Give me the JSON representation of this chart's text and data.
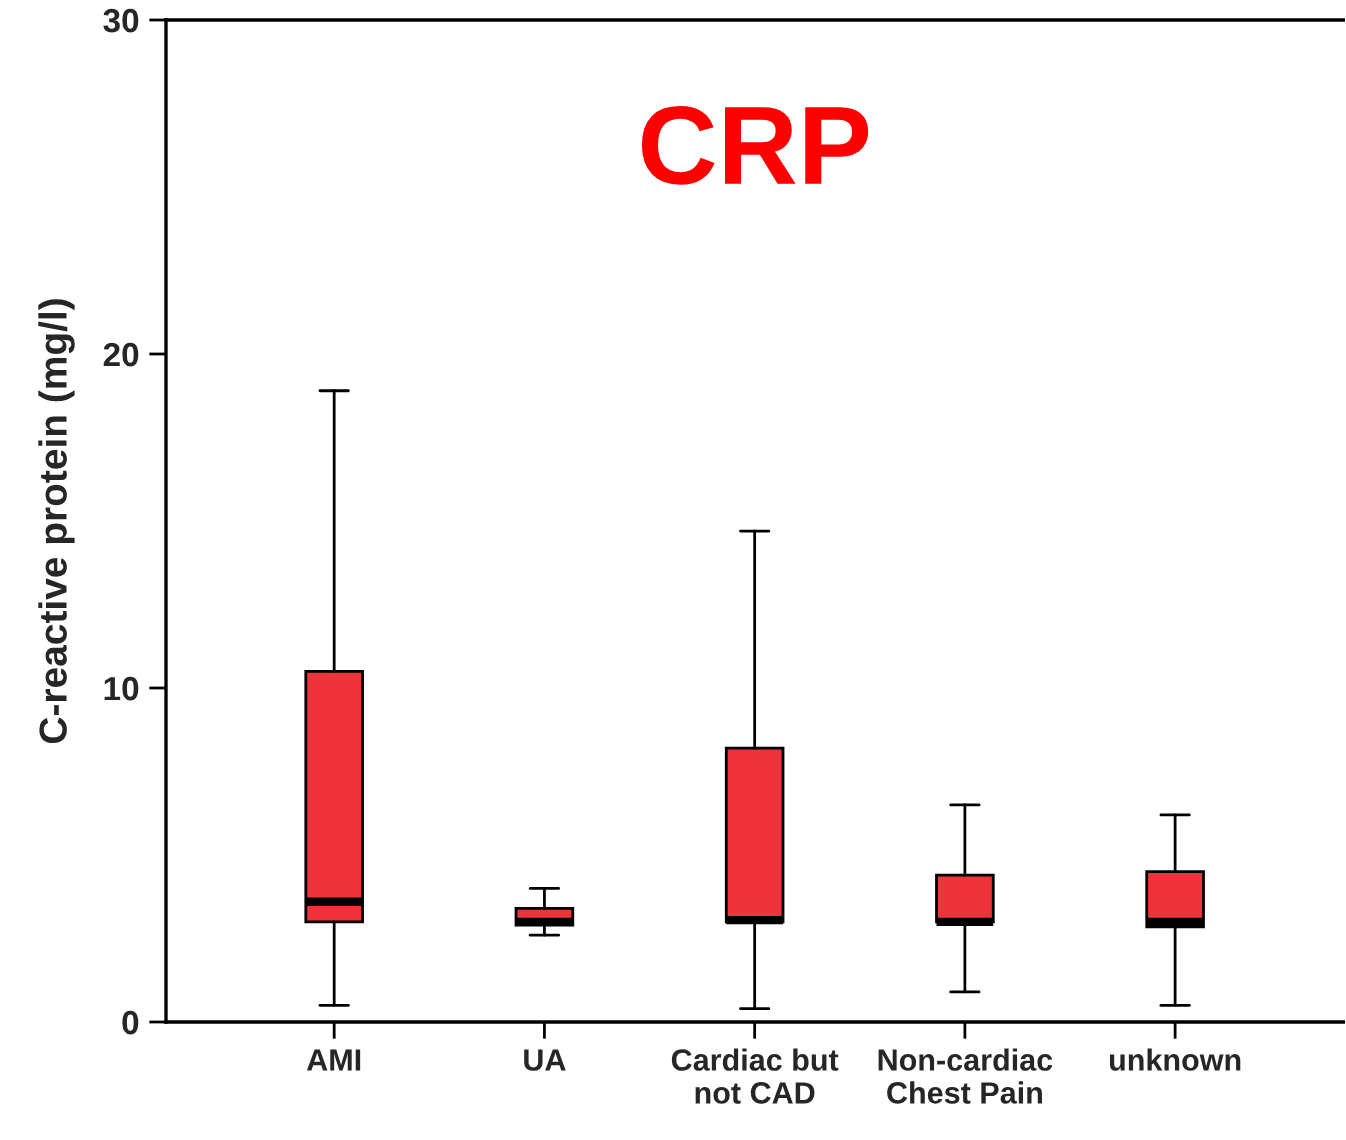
{
  "chart_data": {
    "type": "box",
    "title": "CRP",
    "ylabel": "C-reactive protein (mg/l)",
    "categories": [
      "AMI",
      "UA",
      "Cardiac but\nnot CAD",
      "Non-cardiac\nChest Pain",
      "unknown"
    ],
    "boxes": [
      {
        "low": 0.5,
        "q1": 3.0,
        "median": 3.6,
        "q3": 10.5,
        "high": 18.9
      },
      {
        "low": 2.6,
        "q1": 2.9,
        "median": 3.0,
        "q3": 3.4,
        "high": 4.0
      },
      {
        "low": 0.4,
        "q1": 3.0,
        "median": 3.05,
        "q3": 8.2,
        "high": 14.7
      },
      {
        "low": 0.9,
        "q1": 3.0,
        "median": 3.0,
        "q3": 4.4,
        "high": 6.5
      },
      {
        "low": 0.5,
        "q1": 2.85,
        "median": 3.0,
        "q3": 4.5,
        "high": 6.2
      }
    ],
    "color": "#ef333b",
    "ylim": [
      0,
      30
    ],
    "yticks": [
      0,
      10,
      20,
      30
    ],
    "grid": false
  }
}
